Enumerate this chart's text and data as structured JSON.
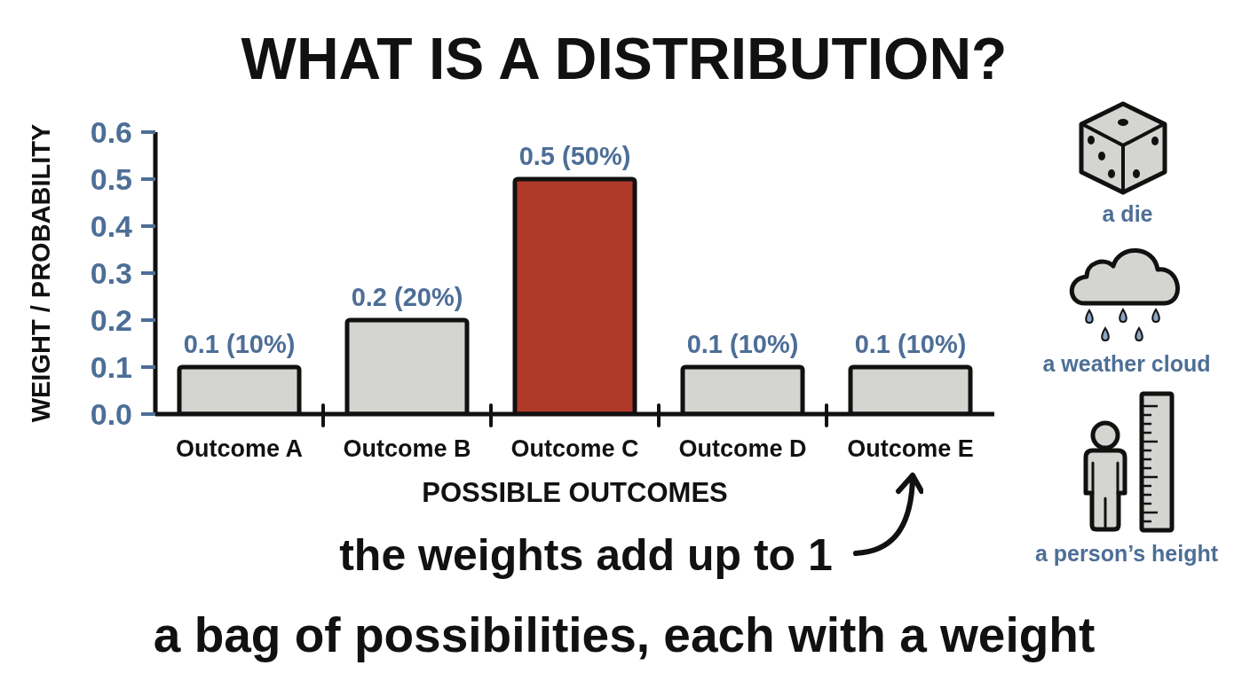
{
  "chart_data": {
    "type": "bar",
    "title": "WHAT IS A DISTRIBUTION?",
    "xlabel": "POSSIBLE OUTCOMES",
    "ylabel": "WEIGHT / PROBABILITY",
    "categories": [
      "Outcome A",
      "Outcome B",
      "Outcome C",
      "Outcome D",
      "Outcome E"
    ],
    "values": [
      0.1,
      0.2,
      0.5,
      0.1,
      0.1
    ],
    "colors": [
      "#d4d4d1",
      "#d4d4d1",
      "#b03a2a",
      "#d4d4d1",
      "#d4d4d1"
    ],
    "value_labels": [
      "0.1 (10%)",
      "0.2 (20%)",
      "0.5 (50%)",
      "0.1 (10%)",
      "0.1 (10%)"
    ],
    "ylim": [
      0,
      0.6
    ],
    "yticks": [
      {
        "value": 0,
        "label": "0.0"
      },
      0.1,
      0.2,
      0.3,
      0.4,
      0.5,
      0.6
    ],
    "annotations": [
      "the weights add up to 1",
      "a bag of possibilities, each with a weight",
      "a die",
      "a weather cloud",
      "a person’s height"
    ]
  }
}
